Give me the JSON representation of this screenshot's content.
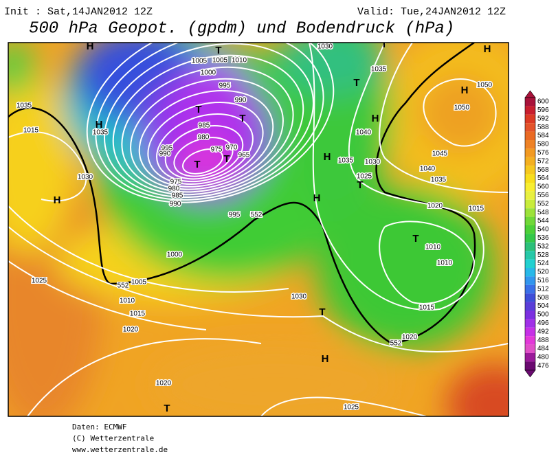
{
  "header": {
    "init": "Init : Sat,14JAN2012 12Z",
    "valid": "Valid: Tue,24JAN2012 12Z",
    "title": "500 hPa Geopot. (gpdm) und Bodendruck (hPa)"
  },
  "colorbar": {
    "labels": [
      600,
      596,
      592,
      588,
      584,
      580,
      576,
      572,
      568,
      564,
      560,
      556,
      552,
      548,
      544,
      540,
      536,
      532,
      528,
      524,
      520,
      516,
      512,
      508,
      504,
      500,
      496,
      492,
      488,
      484,
      480,
      476
    ],
    "colors": [
      "#a8123a",
      "#c81e2e",
      "#dc3a24",
      "#e4532a",
      "#ea6a24",
      "#ee8226",
      "#f29a22",
      "#f4b020",
      "#f6c81e",
      "#f8de1c",
      "#f8ee30",
      "#e8f040",
      "#c8ec3c",
      "#9ce23a",
      "#70d838",
      "#4cd038",
      "#34c84a",
      "#2cc07a",
      "#26c8a8",
      "#22d0d0",
      "#28b8e8",
      "#3296ee",
      "#3a70e8",
      "#3e4ed8",
      "#5a3ed8",
      "#7c30e0",
      "#a030e8",
      "#c630e6",
      "#e238d8",
      "#e050c8",
      "#9a1a9a",
      "#6a0a70"
    ]
  },
  "map": {
    "labels": [
      "H",
      "T",
      "1005",
      "1005",
      "1010",
      "1000",
      "995",
      "990",
      "T",
      "T",
      "985",
      "980",
      "975",
      "970",
      "995",
      "990",
      "965",
      "T",
      "T",
      "975",
      "980",
      "985",
      "990",
      "995",
      "1000",
      "1005",
      "552",
      "552",
      "1010",
      "1015",
      "1020",
      "1025",
      "1030",
      "H",
      "1015",
      "1035",
      "H",
      "1035",
      "1030",
      "T",
      "H",
      "1035",
      "T",
      "1050",
      "H",
      "1050",
      "H",
      "1040",
      "1045",
      "H",
      "1035",
      "1030",
      "1040",
      "1025",
      "1035",
      "T",
      "H",
      "1020",
      "1015",
      "T",
      "1010",
      "1010",
      "1030",
      "T",
      "1015",
      "1020",
      "552",
      "H",
      "1020",
      "T",
      "1025"
    ]
  },
  "footer": {
    "lines": [
      "Daten: ECMWF",
      "(C) Wetterzentrale",
      "www.wetterzentrale.de"
    ]
  }
}
